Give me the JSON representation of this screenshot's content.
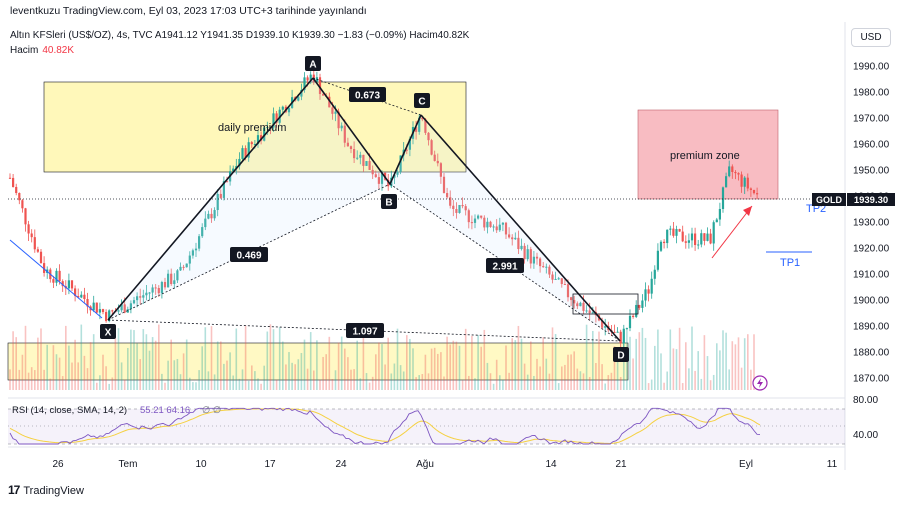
{
  "header": {
    "publisher": "leventkuzu TradingView.com, Eyl 03, 2023 17:03 UTC+3 tarihinde yayınlandı"
  },
  "symbol_line": {
    "text": "Altın KFSleri (US$/OZ), 4s, TVC  A1941.12  Y1941.35  D1939.10  K1939.30  −1.83 (−0.09%)  Hacim40.82K"
  },
  "volume": {
    "label": "Hacim",
    "value": "40.82K"
  },
  "currency_button": {
    "label": "USD"
  },
  "branding": {
    "logo": "17",
    "name": "TradingView"
  },
  "rsi": {
    "label": "RSI (14, close, SMA, 14, 2)",
    "values": "55.21  64.16",
    "extra": "∅  ∅",
    "ticks": [
      "80.00",
      "40.00"
    ]
  },
  "colors": {
    "up": "#26a69a",
    "down": "#ef5350",
    "harmonic": "#131722",
    "premium_zone": "#f5a0a8",
    "daily_premium": "#fff59d",
    "rsi_line": "#7e57c2",
    "rsi_ma": "#f5d142",
    "target": "#2962ff"
  },
  "chart_data": {
    "type": "candlestick",
    "symbol": "GOLD",
    "last_price": 1939.3,
    "price_label": "1939.30",
    "ylim": [
      1865,
      1998
    ],
    "y_ticks": [
      1990,
      1980,
      1970,
      1960,
      1950,
      1940,
      1930,
      1920,
      1910,
      1900,
      1890,
      1880,
      1870
    ],
    "y_tick_labels": [
      "1990.00",
      "1980.00",
      "1970.00",
      "1960.00",
      "1950.00",
      "1940.00",
      "1930.00",
      "1920.00",
      "1910.00",
      "1900.00",
      "1890.00",
      "1880.00",
      "1870.00"
    ],
    "x_tick_labels": [
      "26",
      "Tem",
      "10",
      "17",
      "24",
      "Ağu",
      "14",
      "21",
      "Eyl",
      "11"
    ],
    "harmonic_points": [
      {
        "label": "X",
        "price": 1894
      },
      {
        "label": "A",
        "price": 1987
      },
      {
        "label": "B",
        "price": 1943
      },
      {
        "label": "C",
        "price": 1972
      },
      {
        "label": "D",
        "price": 1885
      }
    ],
    "ratios": [
      "0.673",
      "0.469",
      "2.991",
      "1.097"
    ],
    "zones": [
      {
        "label": "daily premium",
        "top": 1984,
        "bottom": 1950
      },
      {
        "label": "premium zone",
        "top": 1973,
        "bottom": 1940
      }
    ],
    "targets": [
      {
        "label": "TP2",
        "price": 1939
      },
      {
        "label": "TP1",
        "price": 1918
      }
    ]
  }
}
